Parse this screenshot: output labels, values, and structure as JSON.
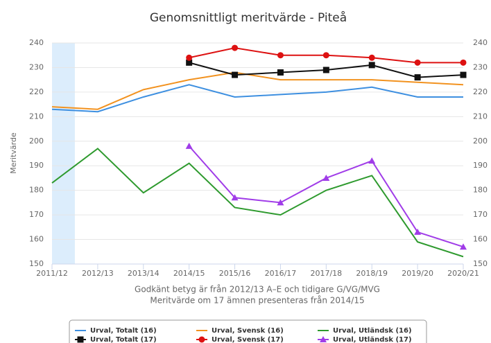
{
  "chart_data": {
    "type": "line",
    "title": "Genomsnittligt meritvärde - Piteå",
    "y_label": "Meritvärde",
    "x_notes": [
      "Godkänt betyg är från 2012/13 A–E och tidigare G/VG/MVG",
      "Meritvärde om 17 ämnen presenteras från 2014/15"
    ],
    "categories": [
      "2011/12",
      "2012/13",
      "2013/14",
      "2014/15",
      "2015/16",
      "2016/17",
      "2017/18",
      "2018/19",
      "2019/20",
      "2020/21"
    ],
    "plot_band": {
      "from": 0,
      "to": 0.5,
      "color": "#dcedfc"
    },
    "series": [
      {
        "name": "Urval, Totalt (16)",
        "color": "#3d8fe0",
        "marker": "none",
        "values": [
          213,
          212,
          218,
          223,
          218,
          219,
          220,
          222,
          218,
          218
        ]
      },
      {
        "name": "Urval, Svensk (16)",
        "color": "#f2921f",
        "marker": "none",
        "values": [
          214,
          213,
          221,
          225,
          228,
          225,
          225,
          225,
          224,
          223
        ]
      },
      {
        "name": "Urval, Utländsk (16)",
        "color": "#2e9a2e",
        "marker": "none",
        "values": [
          183,
          197,
          179,
          191,
          173,
          170,
          180,
          186,
          159,
          153
        ]
      },
      {
        "name": "Urval, Totalt (17)",
        "color": "#111111",
        "marker": "square",
        "values": [
          null,
          null,
          null,
          232,
          227,
          228,
          229,
          231,
          226,
          227
        ]
      },
      {
        "name": "Urval, Svensk (17)",
        "color": "#dd1111",
        "marker": "circle",
        "values": [
          null,
          null,
          null,
          234,
          238,
          235,
          235,
          234,
          232,
          232
        ]
      },
      {
        "name": "Urval, Utländsk (17)",
        "color": "#a03ce8",
        "marker": "triangle",
        "values": [
          null,
          null,
          null,
          198,
          177,
          175,
          185,
          192,
          163,
          157
        ]
      }
    ],
    "ylim": [
      150,
      240
    ],
    "yticks": [
      150,
      160,
      170,
      180,
      190,
      200,
      210,
      220,
      230,
      240
    ],
    "y2lim": [
      150,
      240
    ],
    "y2ticks": [
      150,
      160,
      170,
      180,
      190,
      200,
      210,
      220,
      230,
      240
    ],
    "grid": true,
    "legend": "bottom"
  }
}
